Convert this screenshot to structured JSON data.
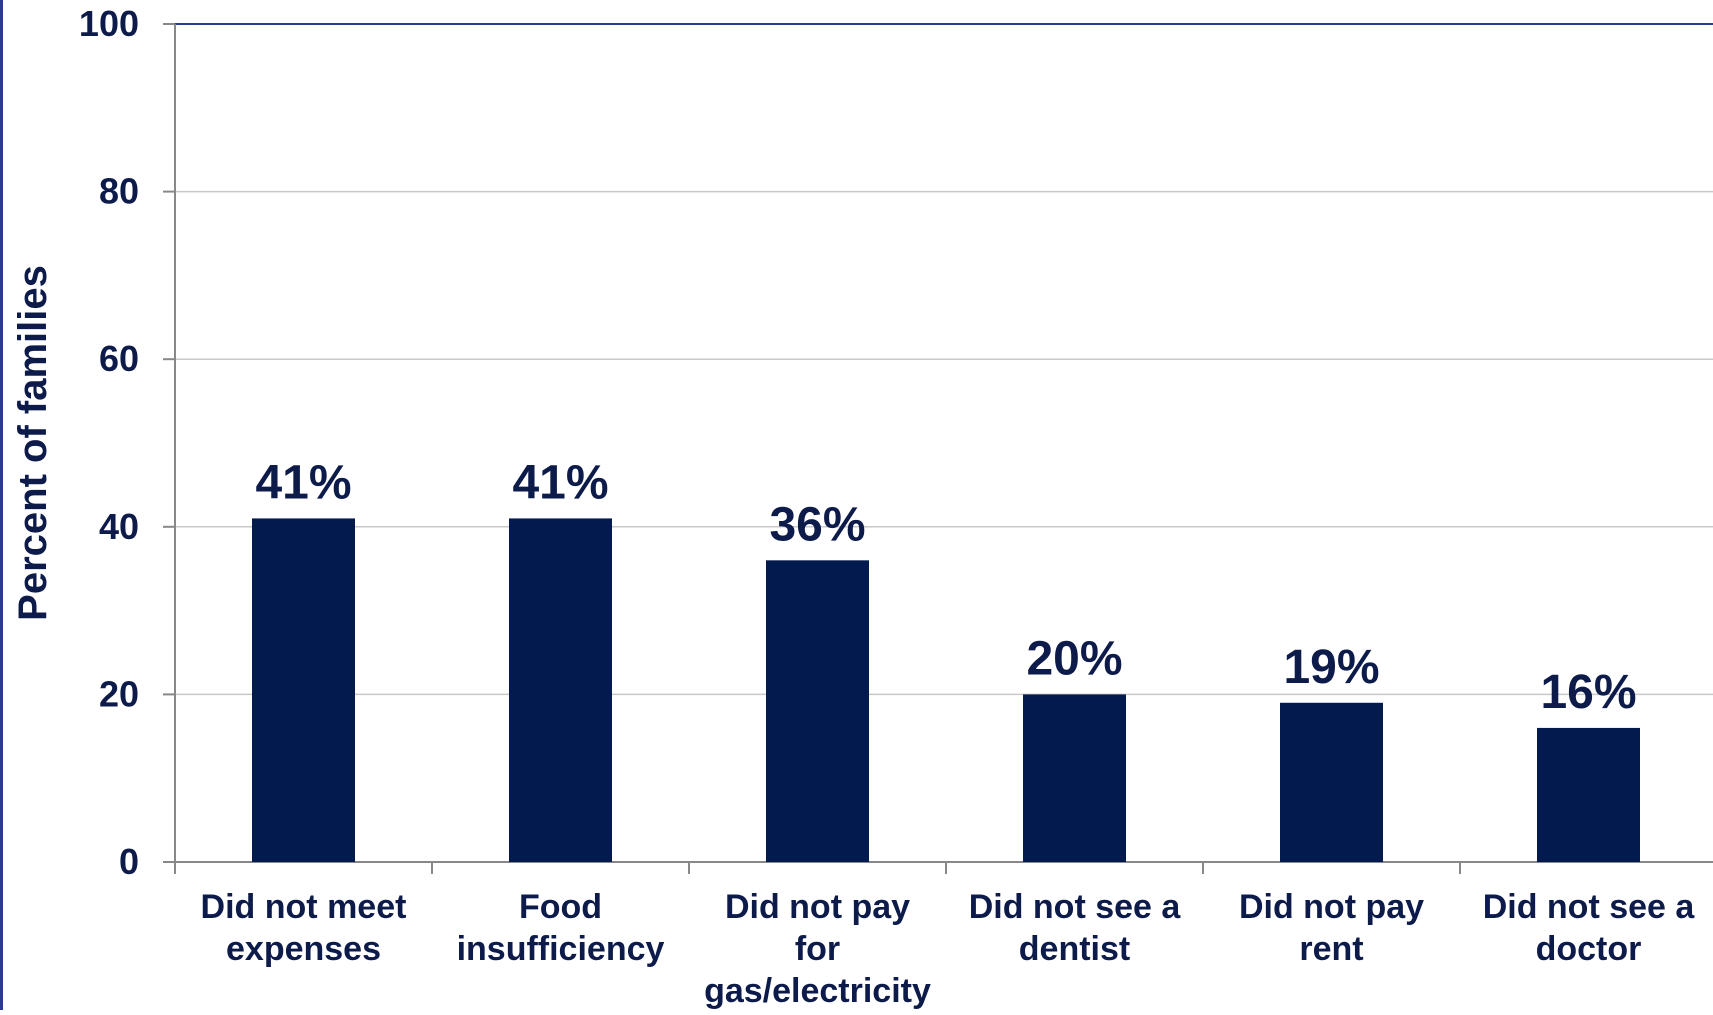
{
  "chart_data": {
    "type": "bar",
    "categories": [
      [
        "Did not meet",
        "expenses"
      ],
      [
        "Food",
        "insufficiency"
      ],
      [
        "Did not pay",
        "for",
        "gas/electricity"
      ],
      [
        "Did not see a",
        "dentist"
      ],
      [
        "Did not pay",
        "rent"
      ],
      [
        "Did not see a",
        "doctor"
      ]
    ],
    "values": [
      41,
      41,
      36,
      20,
      19,
      16
    ],
    "data_labels": [
      "41%",
      "41%",
      "36%",
      "20%",
      "19%",
      "16%"
    ],
    "ylabel": "Percent of families",
    "ylim": [
      0,
      100
    ],
    "yticks": [
      0,
      20,
      40,
      60,
      80,
      100
    ],
    "grid": true,
    "bar_color": "#021a4d",
    "text_color": "#0d1b4b",
    "grid_color": "#c8c8c8"
  }
}
